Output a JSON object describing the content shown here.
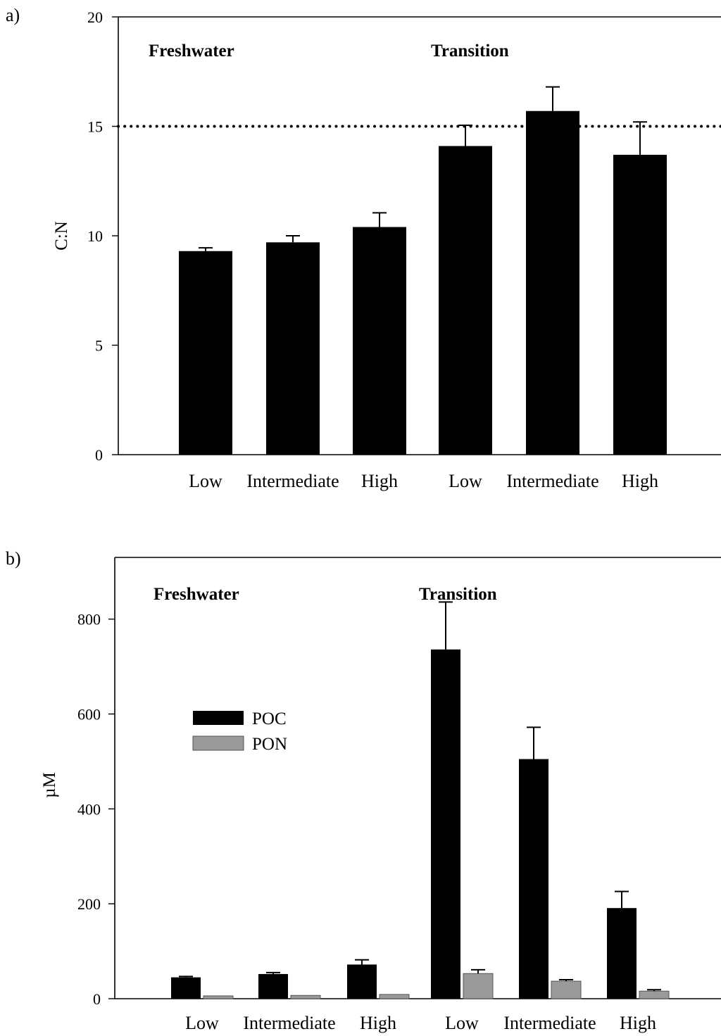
{
  "chart_data": [
    {
      "panel": "a)",
      "type": "bar",
      "ylabel": "C:N",
      "ylim": [
        0,
        20
      ],
      "yticks": [
        0,
        5,
        10,
        15,
        20
      ],
      "groups": [
        "Freshwater",
        "Transition"
      ],
      "categories": [
        "Low",
        "Intermediate",
        "High",
        "Low",
        "Intermediate",
        "High"
      ],
      "category_group": [
        "Freshwater",
        "Freshwater",
        "Freshwater",
        "Transition",
        "Transition",
        "Transition"
      ],
      "series": [
        {
          "values": [
            9.3,
            9.7,
            10.4,
            14.1,
            15.7,
            13.7
          ],
          "errors": [
            0.15,
            0.3,
            0.65,
            0.95,
            1.1,
            1.5
          ],
          "color": "#000000"
        }
      ],
      "reference_line": {
        "y": 15,
        "style": "dotted"
      },
      "grid": false
    },
    {
      "panel": "b)",
      "type": "bar",
      "ylabel": "µM",
      "ylim": [
        0,
        930
      ],
      "yticks": [
        0,
        200,
        400,
        600,
        800
      ],
      "groups": [
        "Freshwater",
        "Transition"
      ],
      "categories": [
        "Low",
        "Intermediate",
        "High",
        "Low",
        "Intermediate",
        "High"
      ],
      "category_group": [
        "Freshwater",
        "Freshwater",
        "Freshwater",
        "Transition",
        "Transition",
        "Transition"
      ],
      "series": [
        {
          "name": "POC",
          "values": [
            45,
            52,
            72,
            736,
            505,
            191
          ],
          "errors": [
            2,
            3,
            10,
            100,
            67,
            35
          ],
          "color": "#000000"
        },
        {
          "name": "PON",
          "values": [
            6,
            7,
            9,
            53,
            37,
            16
          ],
          "errors": [
            0,
            0,
            0,
            8,
            3,
            3
          ],
          "color": "#9a9a9a"
        }
      ],
      "legend": "upper-left",
      "grid": false
    }
  ]
}
